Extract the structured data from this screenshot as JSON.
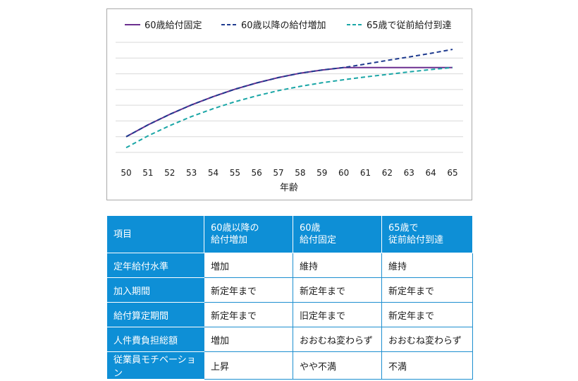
{
  "chart_data": {
    "type": "line",
    "x": [
      50,
      51,
      52,
      53,
      54,
      55,
      56,
      57,
      58,
      59,
      60,
      61,
      62,
      63,
      64,
      65
    ],
    "xlabel": "年齢",
    "ylabel": "",
    "ylim": [
      0,
      7
    ],
    "grid": true,
    "legend_position": "top",
    "series": [
      {
        "name": "60歳給付固定",
        "color": "#6b2f8f",
        "style": "solid",
        "values": [
          1.0,
          1.75,
          2.42,
          3.02,
          3.55,
          4.02,
          4.42,
          4.76,
          5.04,
          5.24,
          5.4,
          5.4,
          5.4,
          5.4,
          5.4,
          5.4
        ]
      },
      {
        "name": "60歳以降の給付増加",
        "color": "#1f3b8f",
        "style": "dashed",
        "values": [
          1.0,
          1.75,
          2.42,
          3.02,
          3.55,
          4.02,
          4.42,
          4.76,
          5.04,
          5.24,
          5.4,
          5.62,
          5.85,
          6.07,
          6.3,
          6.55
        ]
      },
      {
        "name": "65歳で従前給付到達",
        "color": "#1aa6a6",
        "style": "dashed",
        "values": [
          0.3,
          1.05,
          1.7,
          2.28,
          2.78,
          3.22,
          3.6,
          3.93,
          4.2,
          4.43,
          4.62,
          4.8,
          4.96,
          5.12,
          5.27,
          5.4
        ]
      }
    ]
  },
  "table": {
    "headers": [
      "項目",
      "60歳以降の\n給付増加",
      "60歳\n給付固定",
      "65歳で\n従前給付到達"
    ],
    "rows": [
      [
        "定年給付水準",
        "増加",
        "維持",
        "維持"
      ],
      [
        "加入期間",
        "新定年まで",
        "新定年まで",
        "新定年まで"
      ],
      [
        "給付算定期間",
        "新定年まで",
        "旧定年まで",
        "新定年まで"
      ],
      [
        "人件費負担総額",
        "増加",
        "おおむね変わらず",
        "おおむね変わらず"
      ],
      [
        "従業員モチベーション",
        "上昇",
        "やや不満",
        "不満"
      ]
    ]
  }
}
